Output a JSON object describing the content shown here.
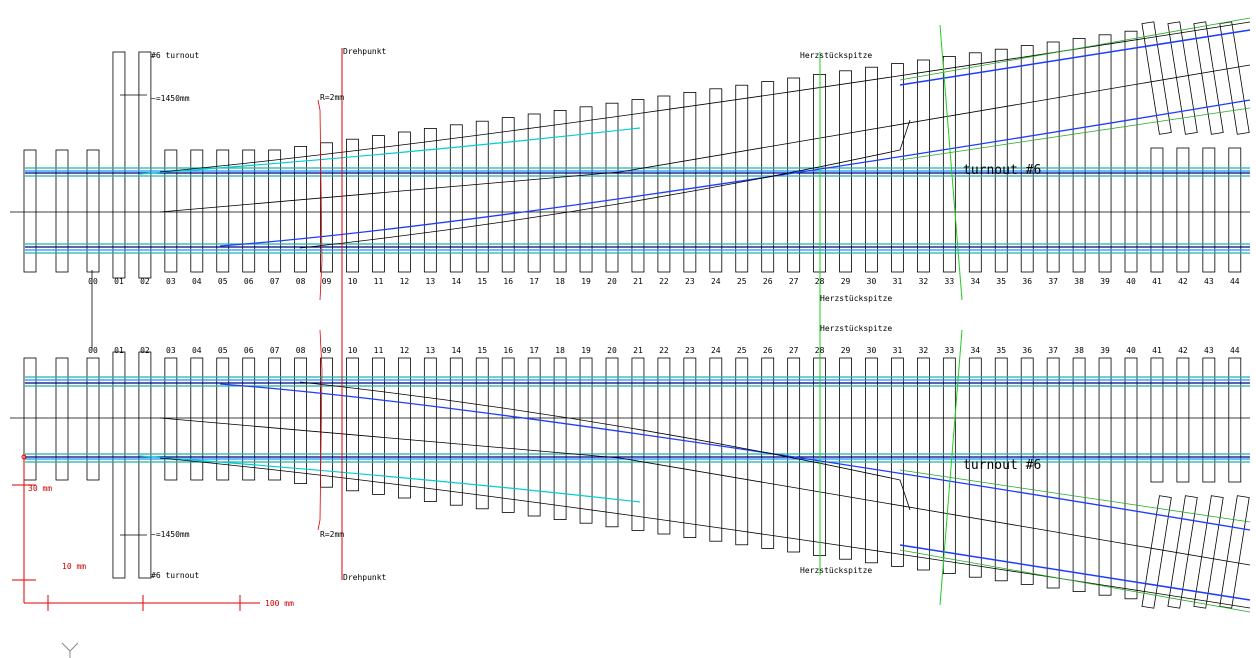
{
  "labels": {
    "turnout_top": "#6 turnout",
    "length_top": "~=1450mm",
    "pivot_top": "Drehpunkt",
    "radius_top": "R=2mm",
    "frog_top": "Herzstückspitze",
    "frog_mid_top": "Herzstückspitze",
    "frog_mid_bottom": "Herzstückspitze",
    "frog_bottom": "Herzstückspitze",
    "turnout_number_top": "turnout #6",
    "turnout_number_bottom": "turnout #6",
    "turnout_bottom": "#6 turnout",
    "length_bottom": "~=1450mm",
    "pivot_bottom": "Drehpunkt",
    "radius_bottom": "R=2mm",
    "scale_30": "30 mm",
    "scale_10": "10 mm",
    "scale_100": "100 mm",
    "axis": "Y"
  },
  "tie_numbers": [
    "00",
    "01",
    "02",
    "03",
    "04",
    "05",
    "06",
    "07",
    "08",
    "09",
    "10",
    "11",
    "12",
    "13",
    "14",
    "15",
    "16",
    "17",
    "18",
    "19",
    "20",
    "21",
    "22",
    "23",
    "24",
    "25",
    "26",
    "27",
    "28",
    "29",
    "30",
    "31",
    "32",
    "33",
    "34",
    "35",
    "36",
    "37",
    "38",
    "39",
    "40",
    "41",
    "42",
    "43",
    "44"
  ]
}
